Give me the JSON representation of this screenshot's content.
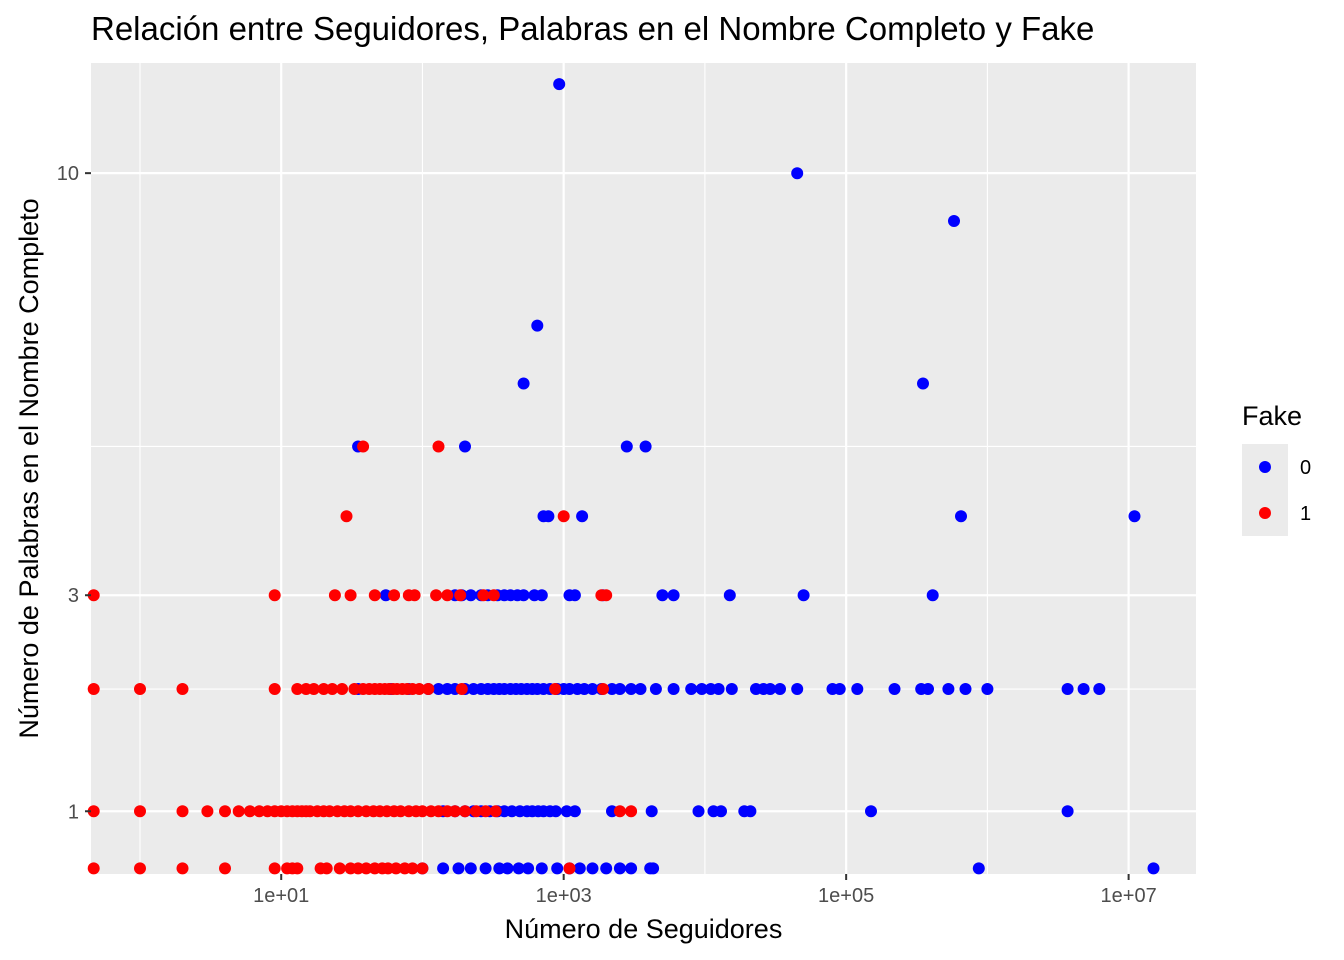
{
  "chart_data": {
    "type": "scatter",
    "title": "Relación entre Seguidores, Palabras en el Nombre Completo y Fake",
    "xlabel": "Número de Seguidores",
    "ylabel": "Número de Palabras en el Nombre Completo",
    "x_scale": "log10",
    "y_scale": "sqrt",
    "xlim": [
      0.45,
      30000000
    ],
    "ylim": [
      0.62,
      12.5
    ],
    "x_ticks": [
      10,
      1000,
      100000,
      10000000
    ],
    "x_tick_labels": [
      "1e+01",
      "1e+03",
      "1e+05",
      "1e+07"
    ],
    "y_ticks": [
      1,
      3,
      10
    ],
    "y_tick_labels": [
      "1",
      "3",
      "10"
    ],
    "grid": true,
    "legend": {
      "title": "Fake",
      "position": "right",
      "entries": [
        {
          "label": "0",
          "color": "#0000ff"
        },
        {
          "label": "1",
          "color": "#ff0000"
        }
      ]
    },
    "series": [
      {
        "name": "0",
        "color": "#0000ff",
        "points": [
          [
            930,
            12
          ],
          [
            45000,
            10
          ],
          [
            580000,
            9
          ],
          [
            650,
            7
          ],
          [
            520,
            6
          ],
          [
            350000,
            6
          ],
          [
            35,
            5
          ],
          [
            200,
            5
          ],
          [
            2800,
            5
          ],
          [
            3800,
            5
          ],
          [
            720,
            4
          ],
          [
            780,
            4
          ],
          [
            1350,
            4
          ],
          [
            650000,
            4
          ],
          [
            11000000,
            4
          ],
          [
            55,
            3
          ],
          [
            170,
            3
          ],
          [
            190,
            3
          ],
          [
            220,
            3
          ],
          [
            260,
            3
          ],
          [
            290,
            3
          ],
          [
            340,
            3
          ],
          [
            380,
            3
          ],
          [
            420,
            3
          ],
          [
            470,
            3
          ],
          [
            520,
            3
          ],
          [
            620,
            3
          ],
          [
            700,
            3
          ],
          [
            1100,
            3
          ],
          [
            1200,
            3
          ],
          [
            1900,
            3
          ],
          [
            5000,
            3
          ],
          [
            6000,
            3
          ],
          [
            15000,
            3
          ],
          [
            50000,
            3
          ],
          [
            410000,
            3
          ],
          [
            35,
            2
          ],
          [
            60,
            2
          ],
          [
            80,
            2
          ],
          [
            110,
            2
          ],
          [
            130,
            2
          ],
          [
            150,
            2
          ],
          [
            170,
            2
          ],
          [
            200,
            2
          ],
          [
            230,
            2
          ],
          [
            260,
            2
          ],
          [
            290,
            2
          ],
          [
            320,
            2
          ],
          [
            350,
            2
          ],
          [
            380,
            2
          ],
          [
            420,
            2
          ],
          [
            460,
            2
          ],
          [
            500,
            2
          ],
          [
            550,
            2
          ],
          [
            600,
            2
          ],
          [
            650,
            2
          ],
          [
            720,
            2
          ],
          [
            800,
            2
          ],
          [
            900,
            2
          ],
          [
            1000,
            2
          ],
          [
            1100,
            2
          ],
          [
            1250,
            2
          ],
          [
            1400,
            2
          ],
          [
            1600,
            2
          ],
          [
            1850,
            2
          ],
          [
            2200,
            2
          ],
          [
            2500,
            2
          ],
          [
            3000,
            2
          ],
          [
            3500,
            2
          ],
          [
            4500,
            2
          ],
          [
            6000,
            2
          ],
          [
            8000,
            2
          ],
          [
            9500,
            2
          ],
          [
            11000,
            2
          ],
          [
            12500,
            2
          ],
          [
            15500,
            2
          ],
          [
            23000,
            2
          ],
          [
            26000,
            2
          ],
          [
            29000,
            2
          ],
          [
            34000,
            2
          ],
          [
            45000,
            2
          ],
          [
            80000,
            2
          ],
          [
            90000,
            2
          ],
          [
            120000,
            2
          ],
          [
            220000,
            2
          ],
          [
            340000,
            2
          ],
          [
            380000,
            2
          ],
          [
            530000,
            2
          ],
          [
            700000,
            2
          ],
          [
            1000000,
            2
          ],
          [
            3700000,
            2
          ],
          [
            4800000,
            2
          ],
          [
            6200000,
            2
          ],
          [
            140,
            1
          ],
          [
            170,
            1
          ],
          [
            200,
            1
          ],
          [
            230,
            1
          ],
          [
            260,
            1
          ],
          [
            300,
            1
          ],
          [
            340,
            1
          ],
          [
            380,
            1
          ],
          [
            430,
            1
          ],
          [
            490,
            1
          ],
          [
            550,
            1
          ],
          [
            600,
            1
          ],
          [
            660,
            1
          ],
          [
            720,
            1
          ],
          [
            800,
            1
          ],
          [
            880,
            1
          ],
          [
            1050,
            1
          ],
          [
            1200,
            1
          ],
          [
            2200,
            1
          ],
          [
            4200,
            1
          ],
          [
            9000,
            1
          ],
          [
            11500,
            1
          ],
          [
            13000,
            1
          ],
          [
            19000,
            1
          ],
          [
            21000,
            1
          ],
          [
            150000,
            1
          ],
          [
            3700000,
            1
          ],
          [
            100,
            0.65
          ],
          [
            140,
            0.65
          ],
          [
            180,
            0.65
          ],
          [
            220,
            0.65
          ],
          [
            280,
            0.65
          ],
          [
            350,
            0.65
          ],
          [
            400,
            0.65
          ],
          [
            480,
            0.65
          ],
          [
            560,
            0.65
          ],
          [
            700,
            0.65
          ],
          [
            900,
            0.65
          ],
          [
            1100,
            0.65
          ],
          [
            1300,
            0.65
          ],
          [
            1600,
            0.65
          ],
          [
            2000,
            0.65
          ],
          [
            2500,
            0.65
          ],
          [
            3000,
            0.65
          ],
          [
            4100,
            0.65
          ],
          [
            4300,
            0.65
          ],
          [
            870000,
            0.65
          ],
          [
            15000000,
            0.65
          ]
        ]
      },
      {
        "name": "1",
        "color": "#ff0000",
        "points": [
          [
            38,
            5
          ],
          [
            130,
            5
          ],
          [
            29,
            4
          ],
          [
            1000,
            4
          ],
          [
            0.47,
            3
          ],
          [
            9,
            3
          ],
          [
            24,
            3
          ],
          [
            31,
            3
          ],
          [
            46,
            3
          ],
          [
            63,
            3
          ],
          [
            80,
            3
          ],
          [
            88,
            3
          ],
          [
            125,
            3
          ],
          [
            150,
            3
          ],
          [
            185,
            3
          ],
          [
            270,
            3
          ],
          [
            320,
            3
          ],
          [
            1850,
            3
          ],
          [
            2000,
            3
          ],
          [
            0.47,
            2
          ],
          [
            1,
            2
          ],
          [
            2,
            2
          ],
          [
            9,
            2
          ],
          [
            13,
            2
          ],
          [
            15,
            2
          ],
          [
            17,
            2
          ],
          [
            20,
            2
          ],
          [
            23,
            2
          ],
          [
            27,
            2
          ],
          [
            33,
            2
          ],
          [
            38,
            2
          ],
          [
            42,
            2
          ],
          [
            46,
            2
          ],
          [
            50,
            2
          ],
          [
            54,
            2
          ],
          [
            58,
            2
          ],
          [
            62,
            2
          ],
          [
            66,
            2
          ],
          [
            72,
            2
          ],
          [
            78,
            2
          ],
          [
            85,
            2
          ],
          [
            95,
            2
          ],
          [
            110,
            2
          ],
          [
            190,
            2
          ],
          [
            870,
            2
          ],
          [
            1900,
            2
          ],
          [
            0.47,
            1
          ],
          [
            1,
            1
          ],
          [
            2,
            1
          ],
          [
            3,
            1
          ],
          [
            4,
            1
          ],
          [
            5,
            1
          ],
          [
            6,
            1
          ],
          [
            7,
            1
          ],
          [
            8,
            1
          ],
          [
            9,
            1
          ],
          [
            10,
            1
          ],
          [
            11,
            1
          ],
          [
            12,
            1
          ],
          [
            13,
            1
          ],
          [
            14,
            1
          ],
          [
            15,
            1
          ],
          [
            16,
            1
          ],
          [
            18,
            1
          ],
          [
            20,
            1
          ],
          [
            22,
            1
          ],
          [
            25,
            1
          ],
          [
            28,
            1
          ],
          [
            31,
            1
          ],
          [
            35,
            1
          ],
          [
            40,
            1
          ],
          [
            45,
            1
          ],
          [
            50,
            1
          ],
          [
            56,
            1
          ],
          [
            63,
            1
          ],
          [
            70,
            1
          ],
          [
            80,
            1
          ],
          [
            90,
            1
          ],
          [
            100,
            1
          ],
          [
            115,
            1
          ],
          [
            130,
            1
          ],
          [
            150,
            1
          ],
          [
            170,
            1
          ],
          [
            200,
            1
          ],
          [
            240,
            1
          ],
          [
            280,
            1
          ],
          [
            330,
            1
          ],
          [
            2500,
            1
          ],
          [
            3000,
            1
          ],
          [
            0.47,
            0.65
          ],
          [
            1,
            0.65
          ],
          [
            2,
            0.65
          ],
          [
            4,
            0.65
          ],
          [
            9,
            0.65
          ],
          [
            11,
            0.65
          ],
          [
            12,
            0.65
          ],
          [
            13,
            0.65
          ],
          [
            19,
            0.65
          ],
          [
            21,
            0.65
          ],
          [
            26,
            0.65
          ],
          [
            31,
            0.65
          ],
          [
            35,
            0.65
          ],
          [
            40,
            0.65
          ],
          [
            46,
            0.65
          ],
          [
            52,
            0.65
          ],
          [
            57,
            0.65
          ],
          [
            65,
            0.65
          ],
          [
            75,
            0.65
          ],
          [
            85,
            0.65
          ],
          [
            100,
            0.65
          ],
          [
            1100,
            0.65
          ]
        ]
      }
    ]
  }
}
